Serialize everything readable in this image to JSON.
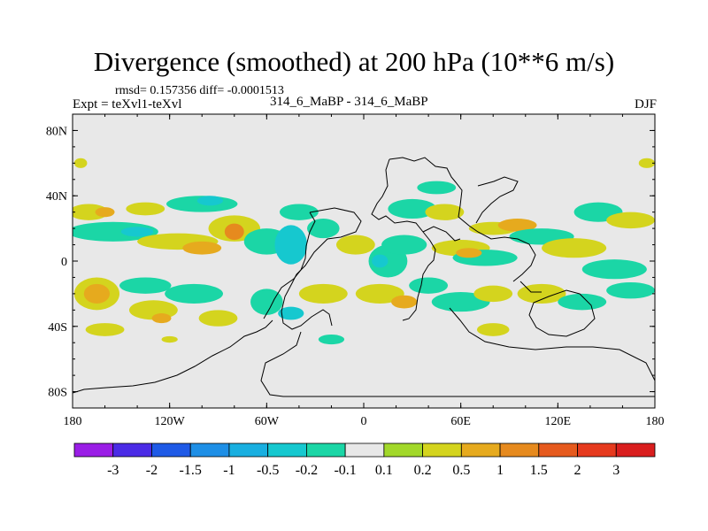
{
  "chart_data": {
    "type": "contour-map",
    "title": "Divergence (smoothed) at 200 hPa (10**6 m/s)",
    "stats_label": "rmsd= 0.157356 diff= -0.0001513",
    "experiment_label": "Expt = teXvl1-teXvl",
    "center_label": "314_6_MaBP - 314_6_MaBP",
    "season_label": "DJF",
    "x_axis": {
      "range": [
        -180,
        180
      ],
      "ticks": [
        -180,
        -120,
        -60,
        0,
        60,
        120,
        180
      ],
      "tick_labels": [
        "180",
        "120W",
        "60W",
        "0",
        "60E",
        "120E",
        "180"
      ]
    },
    "y_axis": {
      "range": [
        -90,
        90
      ],
      "ticks": [
        80,
        40,
        0,
        -40,
        -80
      ],
      "tick_labels": [
        "80N",
        "40N",
        "0",
        "40S",
        "80S"
      ]
    },
    "colorbar": {
      "levels": [
        "-3",
        "-2",
        "-1.5",
        "-1",
        "-0.5",
        "-0.2",
        "-0.1",
        "0.1",
        "0.2",
        "0.5",
        "1",
        "1.5",
        "2",
        "3"
      ],
      "colors": [
        "#9A1EE6",
        "#4B2BE6",
        "#1F5AE6",
        "#1E8FE6",
        "#19AFE0",
        "#16C8CF",
        "#1BD6A6",
        "#E8E8E8",
        "#A2D82A",
        "#D4D41E",
        "#E6AA1E",
        "#E68A1E",
        "#E65A1E",
        "#E63A1E",
        "#D91E1E"
      ]
    },
    "features": [
      {
        "lon": -170,
        "lat": 30,
        "rx": 12,
        "ry": 5,
        "v": 0.2
      },
      {
        "lon": -160,
        "lat": 30,
        "rx": 6,
        "ry": 3,
        "v": 0.5
      },
      {
        "lon": -135,
        "lat": 32,
        "rx": 12,
        "ry": 4,
        "v": 0.2
      },
      {
        "lon": -100,
        "lat": 35,
        "rx": 22,
        "ry": 5,
        "v": -0.2
      },
      {
        "lon": -95,
        "lat": 37,
        "rx": 8,
        "ry": 3,
        "v": -0.5
      },
      {
        "lon": -155,
        "lat": 18,
        "rx": 28,
        "ry": 6,
        "v": -0.2
      },
      {
        "lon": -140,
        "lat": 18,
        "rx": 10,
        "ry": 3,
        "v": -0.5
      },
      {
        "lon": -115,
        "lat": 12,
        "rx": 25,
        "ry": 5,
        "v": 0.2
      },
      {
        "lon": -100,
        "lat": 8,
        "rx": 12,
        "ry": 4,
        "v": 0.5
      },
      {
        "lon": -80,
        "lat": 20,
        "rx": 16,
        "ry": 8,
        "v": 0.2
      },
      {
        "lon": -80,
        "lat": 18,
        "rx": 6,
        "ry": 5,
        "v": 1.0
      },
      {
        "lon": -60,
        "lat": 12,
        "rx": 14,
        "ry": 8,
        "v": -0.2
      },
      {
        "lon": -45,
        "lat": 10,
        "rx": 10,
        "ry": 12,
        "v": -0.5
      },
      {
        "lon": -40,
        "lat": 30,
        "rx": 12,
        "ry": 5,
        "v": -0.2
      },
      {
        "lon": -25,
        "lat": 20,
        "rx": 10,
        "ry": 6,
        "v": -0.2
      },
      {
        "lon": -5,
        "lat": 10,
        "rx": 12,
        "ry": 6,
        "v": 0.2
      },
      {
        "lon": 15,
        "lat": 0,
        "rx": 12,
        "ry": 10,
        "v": -0.2
      },
      {
        "lon": 10,
        "lat": 0,
        "rx": 5,
        "ry": 4,
        "v": -0.5
      },
      {
        "lon": 25,
        "lat": 10,
        "rx": 14,
        "ry": 6,
        "v": -0.2
      },
      {
        "lon": 30,
        "lat": 32,
        "rx": 15,
        "ry": 6,
        "v": -0.2
      },
      {
        "lon": 50,
        "lat": 30,
        "rx": 12,
        "ry": 5,
        "v": 0.2
      },
      {
        "lon": 45,
        "lat": 45,
        "rx": 12,
        "ry": 4,
        "v": -0.2
      },
      {
        "lon": 60,
        "lat": 8,
        "rx": 18,
        "ry": 5,
        "v": 0.2
      },
      {
        "lon": 75,
        "lat": 2,
        "rx": 20,
        "ry": 5,
        "v": -0.2
      },
      {
        "lon": 65,
        "lat": 5,
        "rx": 8,
        "ry": 3,
        "v": 0.5
      },
      {
        "lon": 80,
        "lat": 20,
        "rx": 15,
        "ry": 4,
        "v": 0.2
      },
      {
        "lon": 95,
        "lat": 22,
        "rx": 12,
        "ry": 4,
        "v": 0.5
      },
      {
        "lon": 110,
        "lat": 15,
        "rx": 20,
        "ry": 5,
        "v": -0.2
      },
      {
        "lon": 130,
        "lat": 8,
        "rx": 20,
        "ry": 6,
        "v": 0.2
      },
      {
        "lon": 145,
        "lat": 30,
        "rx": 15,
        "ry": 6,
        "v": -0.2
      },
      {
        "lon": 165,
        "lat": 25,
        "rx": 15,
        "ry": 5,
        "v": 0.2
      },
      {
        "lon": 155,
        "lat": -5,
        "rx": 20,
        "ry": 6,
        "v": -0.2
      },
      {
        "lon": -165,
        "lat": -20,
        "rx": 14,
        "ry": 10,
        "v": 0.2
      },
      {
        "lon": -165,
        "lat": -20,
        "rx": 8,
        "ry": 6,
        "v": 0.5
      },
      {
        "lon": -135,
        "lat": -15,
        "rx": 16,
        "ry": 5,
        "v": -0.2
      },
      {
        "lon": -105,
        "lat": -20,
        "rx": 18,
        "ry": 6,
        "v": -0.2
      },
      {
        "lon": -130,
        "lat": -30,
        "rx": 15,
        "ry": 6,
        "v": 0.2
      },
      {
        "lon": -125,
        "lat": -35,
        "rx": 6,
        "ry": 3,
        "v": 0.5
      },
      {
        "lon": -90,
        "lat": -35,
        "rx": 12,
        "ry": 5,
        "v": 0.2
      },
      {
        "lon": -60,
        "lat": -25,
        "rx": 10,
        "ry": 8,
        "v": -0.2
      },
      {
        "lon": -45,
        "lat": -32,
        "rx": 8,
        "ry": 4,
        "v": -0.5
      },
      {
        "lon": -25,
        "lat": -20,
        "rx": 15,
        "ry": 6,
        "v": 0.2
      },
      {
        "lon": 10,
        "lat": -20,
        "rx": 15,
        "ry": 6,
        "v": 0.2
      },
      {
        "lon": 25,
        "lat": -25,
        "rx": 8,
        "ry": 4,
        "v": 0.5
      },
      {
        "lon": 40,
        "lat": -15,
        "rx": 12,
        "ry": 5,
        "v": -0.2
      },
      {
        "lon": 60,
        "lat": -25,
        "rx": 18,
        "ry": 6,
        "v": -0.2
      },
      {
        "lon": 80,
        "lat": -20,
        "rx": 12,
        "ry": 5,
        "v": 0.2
      },
      {
        "lon": 110,
        "lat": -20,
        "rx": 15,
        "ry": 6,
        "v": 0.2
      },
      {
        "lon": 135,
        "lat": -25,
        "rx": 15,
        "ry": 5,
        "v": -0.2
      },
      {
        "lon": 165,
        "lat": -18,
        "rx": 15,
        "ry": 5,
        "v": -0.2
      },
      {
        "lon": -160,
        "lat": -42,
        "rx": 12,
        "ry": 4,
        "v": 0.2
      },
      {
        "lon": -120,
        "lat": -48,
        "rx": 5,
        "ry": 2,
        "v": 0.2
      },
      {
        "lon": -20,
        "lat": -48,
        "rx": 8,
        "ry": 3,
        "v": -0.2
      },
      {
        "lon": 80,
        "lat": -42,
        "rx": 10,
        "ry": 4,
        "v": 0.2
      },
      {
        "lon": 175,
        "lat": 60,
        "rx": 5,
        "ry": 3,
        "v": 0.2
      },
      {
        "lon": -175,
        "lat": 60,
        "rx": 4,
        "ry": 3,
        "v": 0.2
      }
    ]
  }
}
